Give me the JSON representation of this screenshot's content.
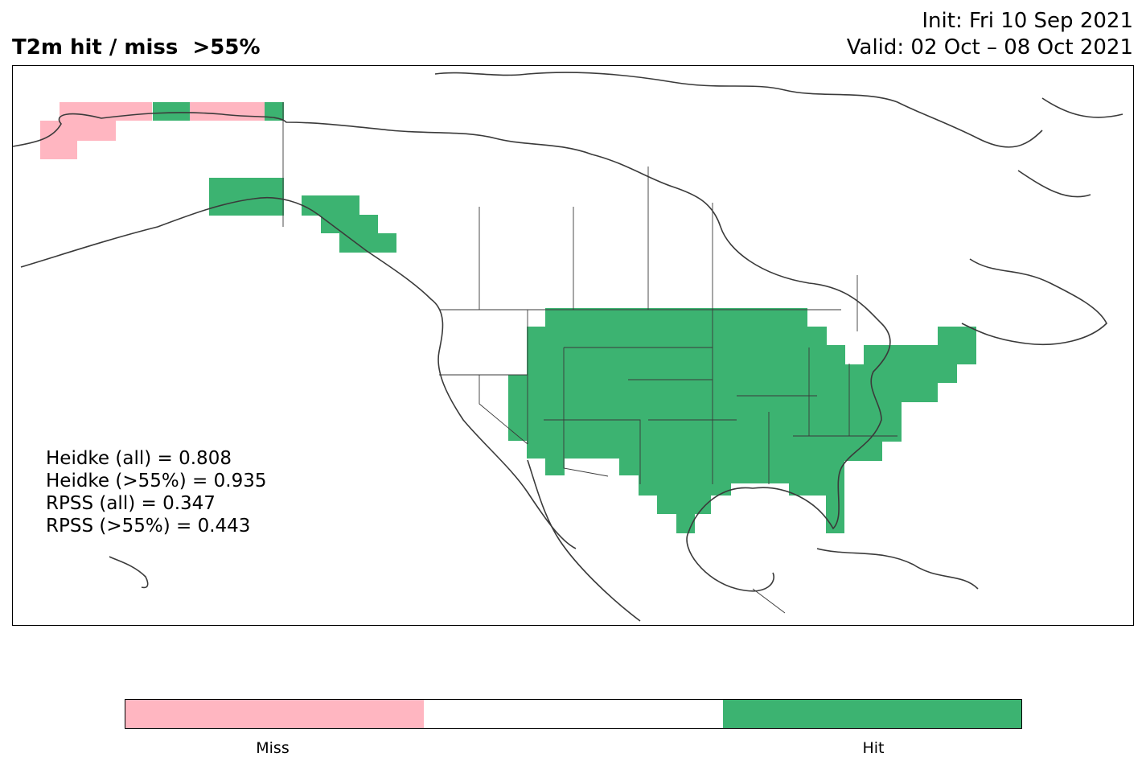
{
  "header": {
    "title": "T2m hit / miss  >55%",
    "init_line": "Init: Fri 10 Sep 2021",
    "valid_line": "Valid: 02 Oct – 08 Oct 2021"
  },
  "scores": [
    "Heidke (all) = 0.808",
    "Heidke (>55%) = 0.935",
    "RPSS (all) = 0.347",
    "RPSS (>55%) = 0.443"
  ],
  "colors": {
    "miss": "#ffb6c1",
    "neutral": "#ffffff",
    "hit": "#3cb371",
    "coastline": "#3a3a3a"
  },
  "legend": {
    "miss_label": "Miss",
    "hit_label": "Hit"
  }
}
